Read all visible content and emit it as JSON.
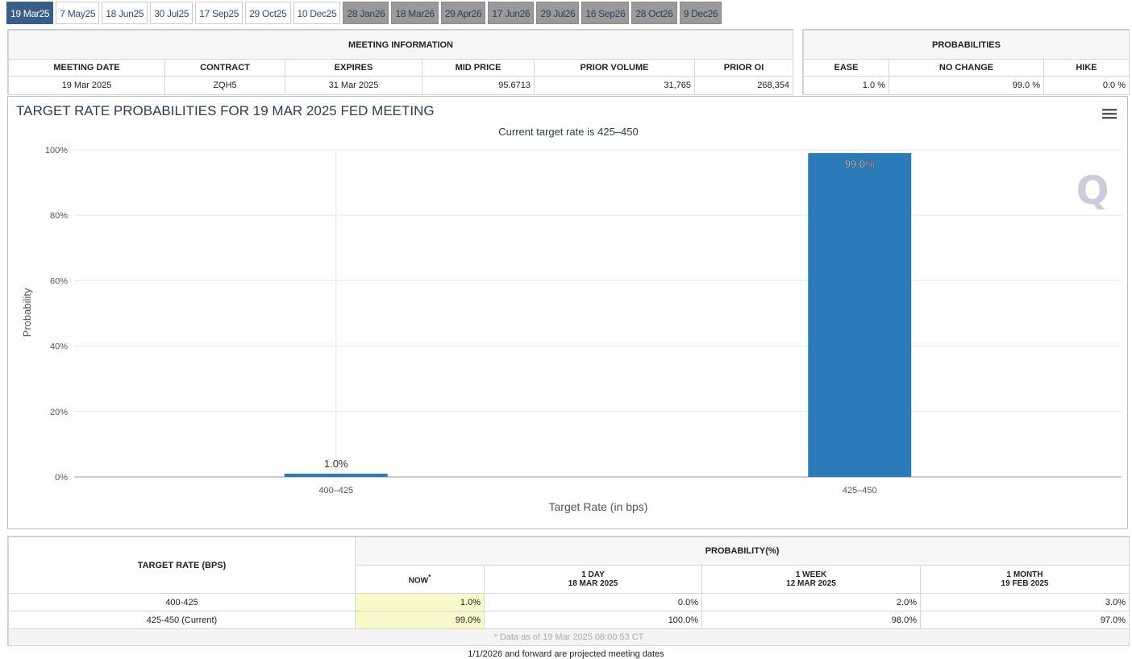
{
  "tabs": [
    {
      "label": "19 Mar25",
      "state": "active"
    },
    {
      "label": "7 May25",
      "state": "normal"
    },
    {
      "label": "18 Jun25",
      "state": "normal"
    },
    {
      "label": "30 Jul25",
      "state": "normal"
    },
    {
      "label": "17 Sep25",
      "state": "normal"
    },
    {
      "label": "29 Oct25",
      "state": "normal"
    },
    {
      "label": "10 Dec25",
      "state": "normal"
    },
    {
      "label": "28 Jan26",
      "state": "projected"
    },
    {
      "label": "18 Mar26",
      "state": "projected"
    },
    {
      "label": "29 Apr26",
      "state": "projected"
    },
    {
      "label": "17 Jun26",
      "state": "projected"
    },
    {
      "label": "29 Jul26",
      "state": "projected"
    },
    {
      "label": "16 Sep26",
      "state": "projected"
    },
    {
      "label": "28 Oct26",
      "state": "projected"
    },
    {
      "label": "9 Dec26",
      "state": "projected"
    }
  ],
  "meeting_info": {
    "title": "MEETING INFORMATION",
    "headers": [
      "MEETING DATE",
      "CONTRACT",
      "EXPIRES",
      "MID PRICE",
      "PRIOR VOLUME",
      "PRIOR OI"
    ],
    "values": [
      "19 Mar 2025",
      "ZQH5",
      "31 Mar 2025",
      "95.6713",
      "31,765",
      "268,354"
    ]
  },
  "probabilities": {
    "title": "PROBABILITIES",
    "headers": [
      "EASE",
      "NO CHANGE",
      "HIKE"
    ],
    "values": [
      "1.0 %",
      "99.0 %",
      "0.0 %"
    ]
  },
  "chart_data": {
    "type": "bar",
    "title": "TARGET RATE PROBABILITIES FOR 19 MAR 2025 FED MEETING",
    "subtitle": "Current target rate is 425–450",
    "xlabel": "Target Rate (in bps)",
    "ylabel": "Probability",
    "categories": [
      "400–425",
      "425–450"
    ],
    "values": [
      1.0,
      99.0
    ],
    "data_labels": [
      "1.0%",
      "99.0%"
    ],
    "ylim": [
      0,
      100
    ],
    "yticks": [
      "0%",
      "20%",
      "40%",
      "60%",
      "80%",
      "100%"
    ],
    "grid": true,
    "color": "#2b7bb9"
  },
  "bottom_table": {
    "col1_header": "TARGET RATE (BPS)",
    "group_header": "PROBABILITY(%)",
    "headers": [
      {
        "l1": "NOW",
        "l2": "",
        "sup": "*"
      },
      {
        "l1": "1 DAY",
        "l2": "18 MAR 2025"
      },
      {
        "l1": "1 WEEK",
        "l2": "12 MAR 2025"
      },
      {
        "l1": "1 MONTH",
        "l2": "19 FEB 2025"
      }
    ],
    "rows": [
      {
        "rate": "400-425",
        "vals": [
          "1.0%",
          "0.0%",
          "2.0%",
          "3.0%"
        ]
      },
      {
        "rate": "425-450 (Current)",
        "vals": [
          "99.0%",
          "100.0%",
          "98.0%",
          "97.0%"
        ]
      }
    ],
    "footnote": "* Data as of 19 Mar 2025 08:00:53 CT"
  },
  "footer": "1/1/2026 and forward are projected meeting dates"
}
